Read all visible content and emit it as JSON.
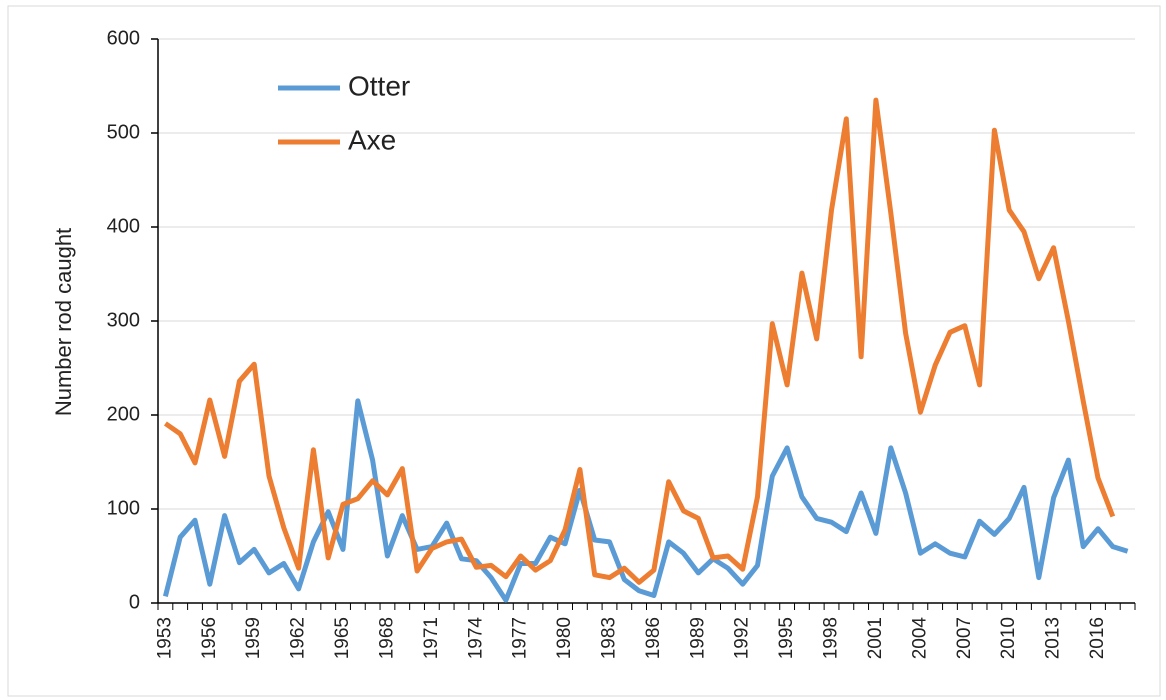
{
  "chart_data": {
    "type": "line",
    "ylabel": "Number rod caught",
    "categories": [
      "1953",
      null,
      null,
      "1956",
      null,
      null,
      "1959",
      null,
      null,
      "1962",
      null,
      null,
      "1965",
      null,
      null,
      "1968",
      null,
      null,
      "1971",
      null,
      null,
      "1974",
      null,
      null,
      "1977",
      null,
      null,
      "1980",
      null,
      null,
      "1983",
      null,
      null,
      "1986",
      null,
      null,
      "1989",
      null,
      null,
      "1992",
      null,
      null,
      "1995",
      null,
      null,
      "1998",
      null,
      null,
      "2001",
      null,
      null,
      "2004",
      null,
      null,
      "2007",
      null,
      null,
      "2010",
      null,
      null,
      "2013",
      null,
      null,
      "2016",
      null,
      null
    ],
    "series": [
      {
        "name": "Otter",
        "color": "#5b9bd5",
        "values": [
          7,
          70,
          88,
          20,
          93,
          43,
          57,
          32,
          42,
          15,
          65,
          97,
          57,
          215,
          152,
          50,
          93,
          57,
          60,
          85,
          47,
          45,
          27,
          3,
          42,
          42,
          70,
          63,
          120,
          67,
          65,
          25,
          13,
          8,
          65,
          53,
          32,
          47,
          37,
          20,
          40,
          135,
          165,
          113,
          90,
          86,
          76,
          117,
          74,
          165,
          117,
          53,
          63,
          53,
          49,
          87,
          73,
          90,
          123,
          27,
          112,
          152,
          60,
          79,
          60,
          55
        ]
      },
      {
        "name": "Axe",
        "color": "#ed7d31",
        "values": [
          191,
          180,
          149,
          216,
          156,
          236,
          254,
          135,
          80,
          37,
          163,
          48,
          105,
          111,
          130,
          115,
          143,
          34,
          58,
          65,
          68,
          38,
          40,
          28,
          50,
          35,
          45,
          78,
          142,
          30,
          27,
          37,
          22,
          35,
          129,
          98,
          90,
          48,
          50,
          36,
          113,
          297,
          232,
          351,
          281,
          418,
          515,
          262,
          535,
          415,
          287,
          203,
          253,
          288,
          295,
          232,
          503,
          418,
          395,
          345,
          378,
          300,
          215,
          133,
          92,
          null
        ]
      }
    ],
    "ylim": [
      0,
      600
    ],
    "yticks": [
      0,
      100,
      200,
      300,
      400,
      500,
      600
    ],
    "grid": true,
    "legend": "upper left"
  }
}
